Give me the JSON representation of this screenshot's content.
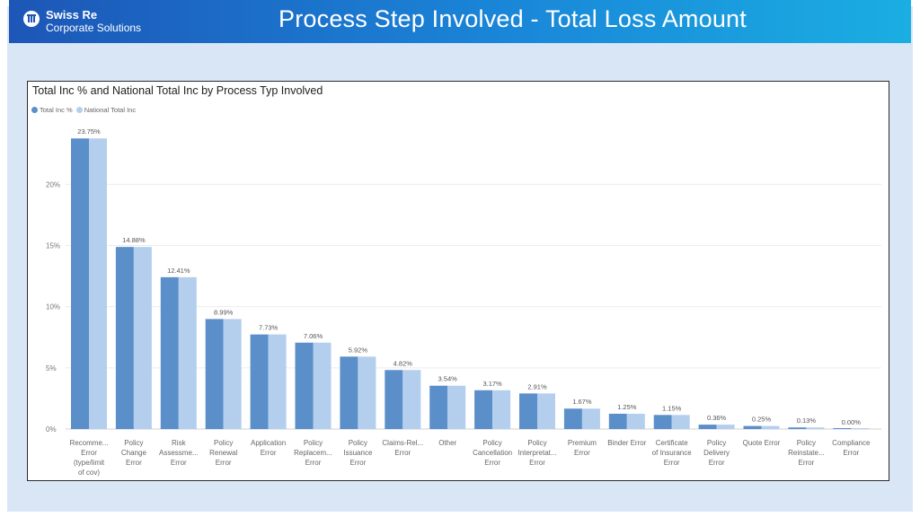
{
  "header": {
    "brand": "Swiss Re",
    "subbrand": "Corporate Solutions",
    "title": "Process Step Involved - Total Loss Amount"
  },
  "colors": {
    "series1": "#5b8fc9",
    "series2": "#b4cfee",
    "banner_start": "#1d56b7",
    "banner_end": "#1aaee2",
    "background": "#d9e6f6"
  },
  "chart_data": {
    "type": "bar",
    "title": "Total Inc % and National Total Inc by Process Typ Involved",
    "xlabel": "",
    "ylabel": "",
    "ylim": [
      0,
      24
    ],
    "yticks": [
      "0%",
      "5%",
      "10%",
      "15%",
      "20%"
    ],
    "legend_position": "top-left",
    "grid": true,
    "categories": [
      [
        "Recomme...",
        "Error",
        "(type/limit",
        "of cov)"
      ],
      [
        "Policy",
        "Change",
        "Error"
      ],
      [
        "Risk",
        "Assessme...",
        "Error"
      ],
      [
        "Policy",
        "Renewal",
        "Error"
      ],
      [
        "Application",
        "Error"
      ],
      [
        "Policy",
        "Replacem...",
        "Error"
      ],
      [
        "Policy",
        "Issuance",
        "Error"
      ],
      [
        "Claims-Rel...",
        "Error"
      ],
      [
        "Other"
      ],
      [
        "Policy",
        "Cancellation",
        "Error"
      ],
      [
        "Policy",
        "Interpretat...",
        "Error"
      ],
      [
        "Premium",
        "Error"
      ],
      [
        "Binder Error"
      ],
      [
        "Certificate",
        "of Insurance",
        "Error"
      ],
      [
        "Policy",
        "Delivery",
        "Error"
      ],
      [
        "Quote Error"
      ],
      [
        "Policy",
        "Reinstate...",
        "Error"
      ],
      [
        "Compliance",
        "Error"
      ]
    ],
    "data_labels": [
      "23.75%",
      "14.88%",
      "12.41%",
      "8.99%",
      "7.73%",
      "7.06%",
      "5.92%",
      "4.82%",
      "3.54%",
      "3.17%",
      "2.91%",
      "1.67%",
      "1.25%",
      "1.15%",
      "0.36%",
      "0.25%",
      "0.13%",
      "0.00%"
    ],
    "series": [
      {
        "name": "Total Inc %",
        "values": [
          23.75,
          14.88,
          12.41,
          8.99,
          7.73,
          7.06,
          5.92,
          4.82,
          3.54,
          3.17,
          2.91,
          1.67,
          1.25,
          1.15,
          0.36,
          0.25,
          0.13,
          0.0
        ]
      },
      {
        "name": "National Total Inc",
        "values": [
          23.75,
          14.88,
          12.41,
          8.99,
          7.73,
          7.06,
          5.92,
          4.82,
          3.54,
          3.17,
          2.91,
          1.67,
          1.25,
          1.15,
          0.36,
          0.25,
          0.13,
          0.0
        ]
      }
    ]
  }
}
